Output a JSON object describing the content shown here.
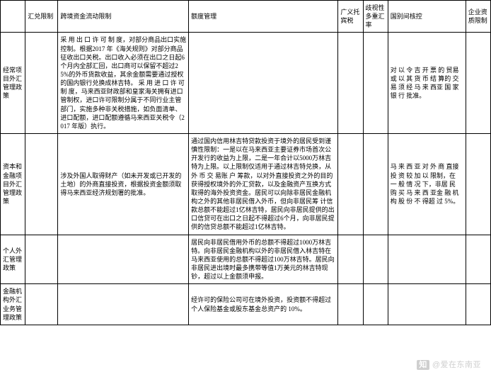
{
  "table": {
    "headers": [
      "",
      "汇兑限制",
      "跨境资金流动限制",
      "额度管理",
      "广义托宾税",
      "歧视性多重汇率",
      "国别间核控",
      "企业资质限制"
    ],
    "rows": [
      {
        "h": "经常项目外汇管理政策",
        "cells": [
          "",
          "采 用 出 口 许 可 制 度，对部分商品出口实施控制。根据2017 年《海关规则》对部分商品征收出口关税。出口收入必须在出口之日起6 个月内全部汇回，出口商可以保留不超过25%的外币货款收益，其余金额需要通过授权的国内银行兑换成林吉特。\n采 用 进 口 许 可 制 度，马来西亚财政部和皇家海关拥有进口管制权，进口许可限制分属于不同行业主管部门，实施多种非关税措施，如负面清单、进口配额，进口配额遵循马来西亚关税令（2017 年版）执行。",
          "",
          "",
          "",
          "对 以 令 吉 开 票 的 贸易或 以 其 货 币 结 算的 交 易 须 经 马 来 西亚 国 家 银 行 批准。",
          ""
        ]
      },
      {
        "h": "资本和金融项目外汇管理政策",
        "cells": [
          "",
          "涉及外国人取得财产（如未开发或已开发的土地）的外商直接投资，根据投资金额须取得马来西亚经济规划署的批准。",
          "通过国内信用林吉特贷款投资于境外的居民受到谨慎性限制：一是以在马来西亚主要证券市场首次公开发行的收益为上限，二是一年合计以5000万林吉特为上限。以上限制仅适用于通过林吉特兑换，从 外 币 交 易账 户 筹款，以对外直接投资之外的目的获得授权境外的外汇贷款，以及金融资产互换方式取得的海外投资资金。居民可以向除非居民金融机构之外的其他非居民借入外币，但向非居民筹\n计信款总额不能超过1亿林吉特，居民向非居民提供的出口信贷可在出口之日起不得超过6个月，向非居民提供的信贷总额不能超过1亿林吉特。",
          "",
          "",
          "马 来 西 亚 对 外 商 直接投 资 较 加 以 限制，在 一 般 情 况 下，非居 民 购 买 马 来 西 亚金 融 机 构 股 份 不 得超 过 5%。",
          ""
        ]
      },
      {
        "h": "个人外汇管理政策",
        "cells": [
          "",
          "",
          "居民向非居民借用外币的总额不得超过1000万林吉特。向非居民金融机构以外的非居民借入林吉特在马来西亚使用的总额不得超过100万林吉特。居民向非居民进出境时最多携带等值1万美元的林吉特现钞，超过以上金额须申报。",
          "",
          "",
          "",
          ""
        ]
      },
      {
        "h": "金融机构外汇业务管理政策",
        "cells": [
          "",
          "",
          "经许可的保险公司可在境外投资，投资额不得超过个人保险基金或股东基金总资产的 10%。",
          "",
          "",
          "",
          ""
        ]
      }
    ]
  },
  "watermark": "@爱在东南亚"
}
